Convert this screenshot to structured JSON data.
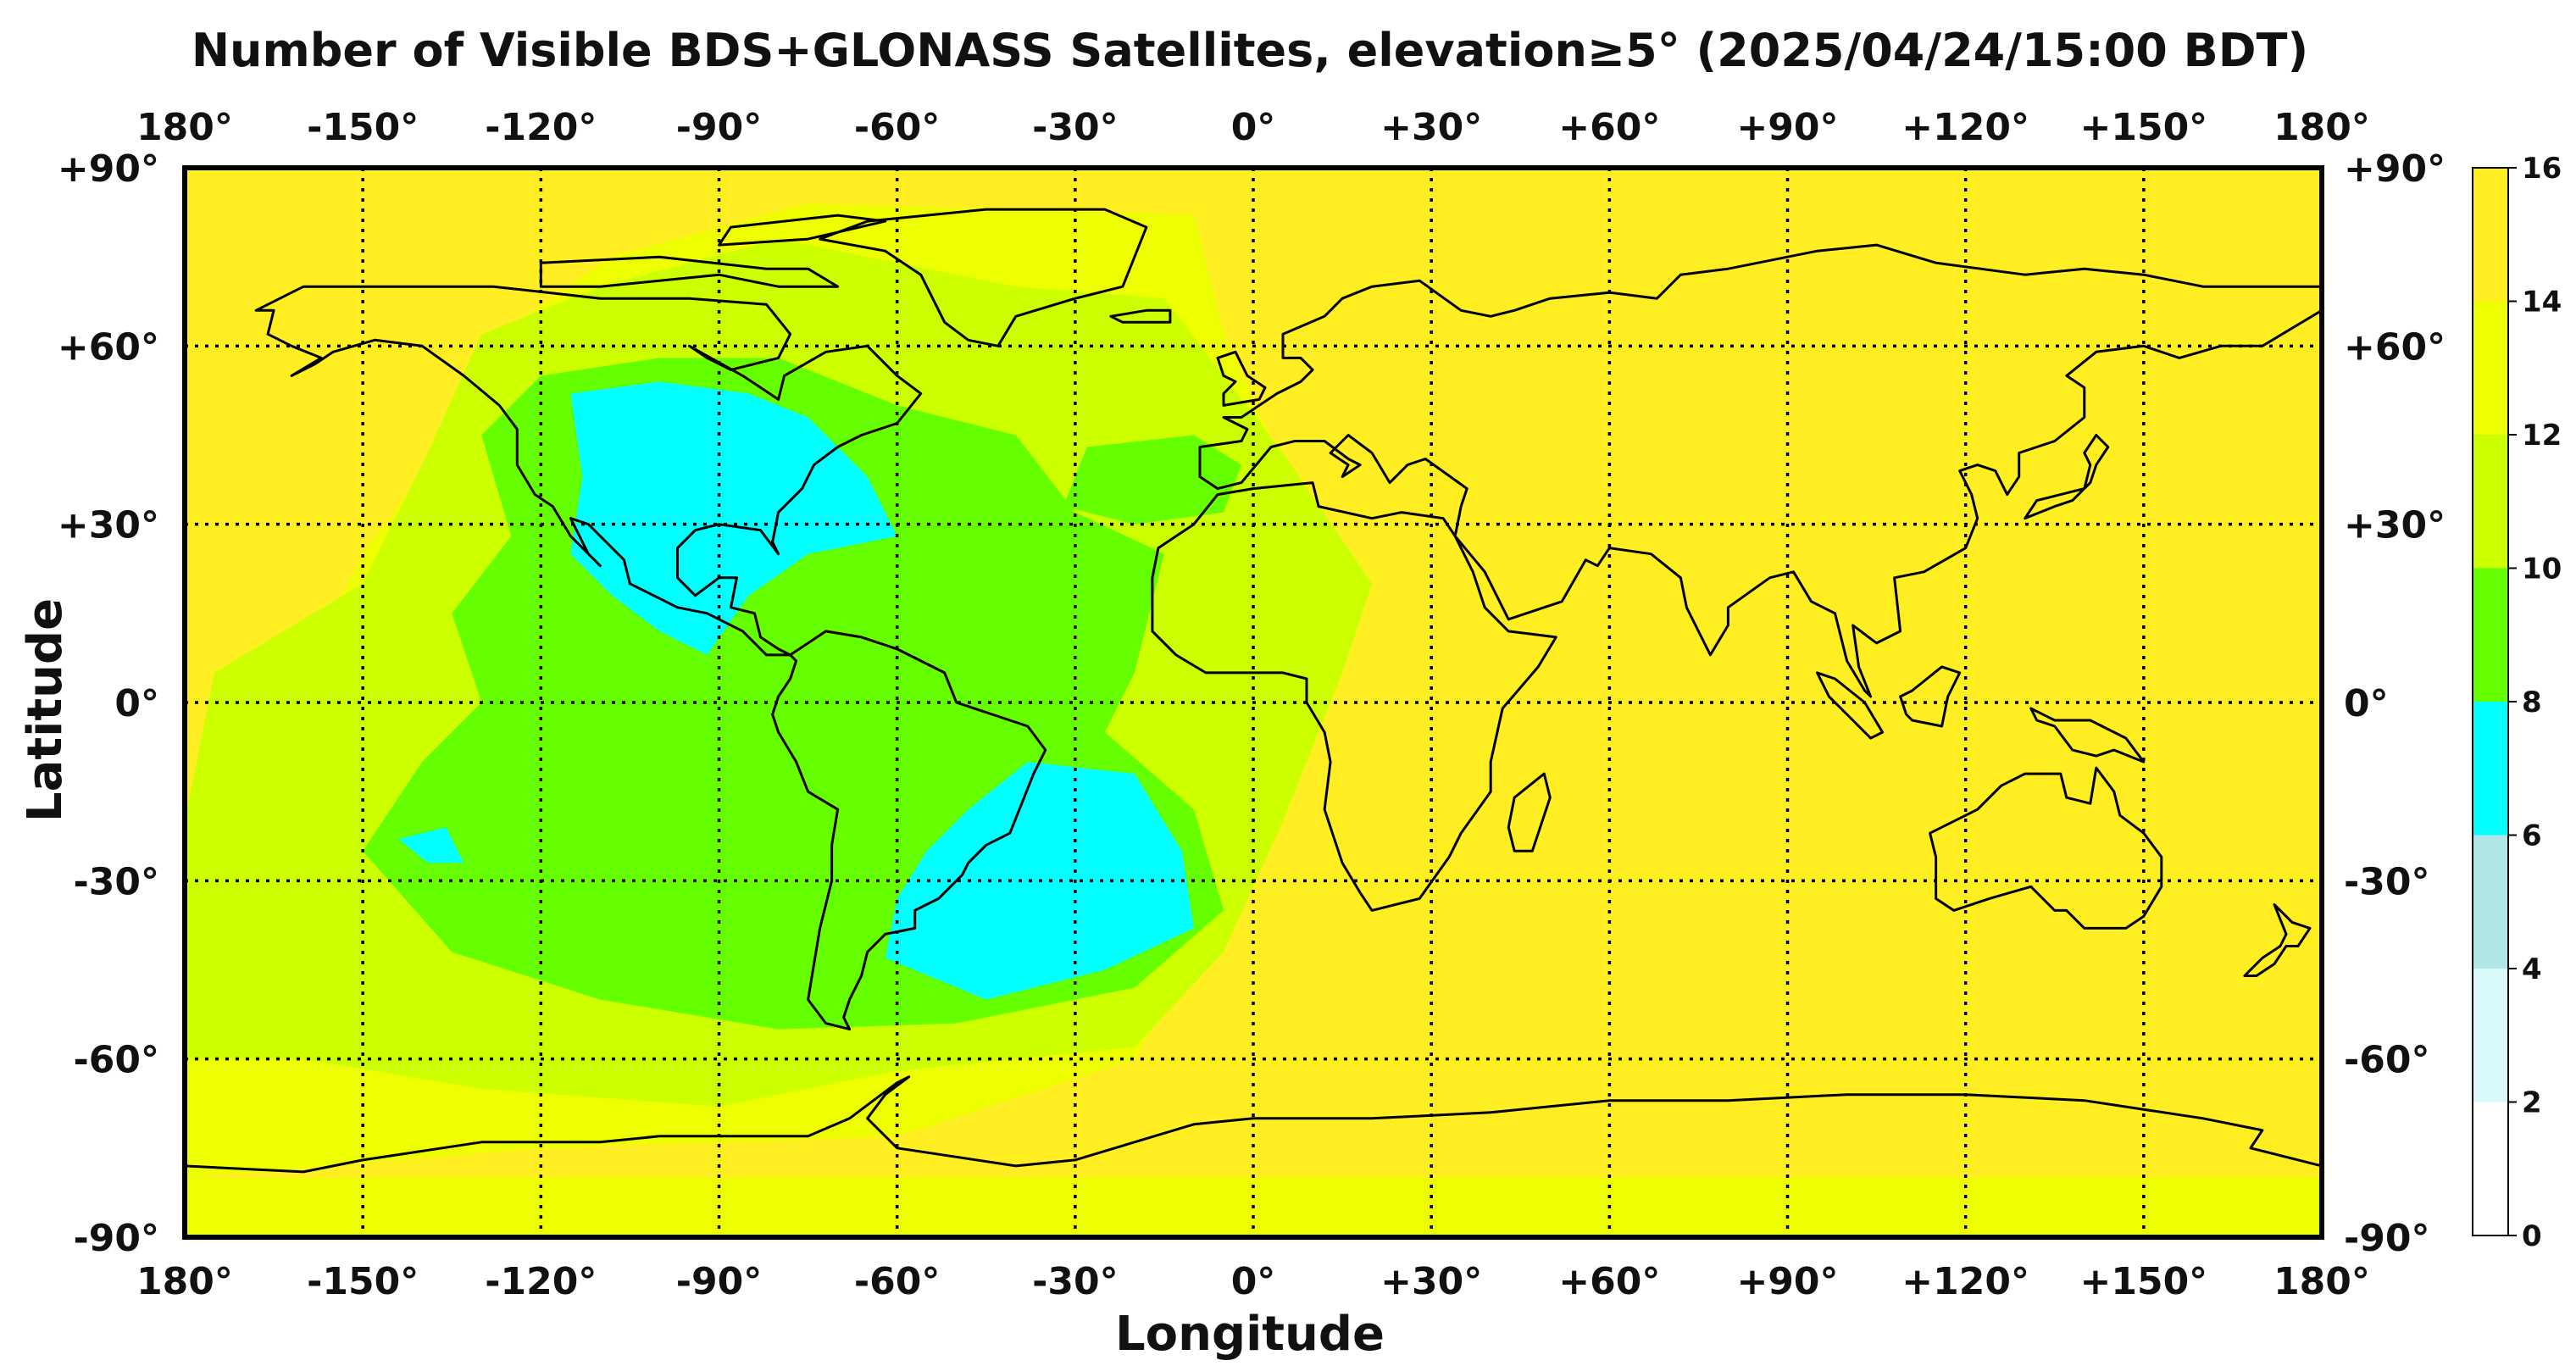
{
  "map": {
    "title": "Number of Visible BDS+GLONASS Satellites, elevation≥5° (2025/04/24/15:00 BDT)",
    "xlabel": "Longitude",
    "ylabel": "Latitude",
    "lon_ticks": [
      "180°",
      "-150°",
      "-120°",
      "-90°",
      "-60°",
      "-30°",
      "0°",
      "+30°",
      "+60°",
      "+90°",
      "+120°",
      "+150°",
      "180°"
    ],
    "lat_ticks": [
      "+90°",
      "+60°",
      "+30°",
      "0°",
      "-30°",
      "-60°",
      "-90°"
    ],
    "lon_range": [
      -180,
      180
    ],
    "lat_range": [
      -90,
      90
    ],
    "gridlines": true
  },
  "colorbar": {
    "ticks": [
      "0",
      "2",
      "4",
      "6",
      "8",
      "10",
      "12",
      "14",
      "16"
    ],
    "colors": [
      "#ffffff",
      "#d8fafa",
      "#b0e6e6",
      "#00ffff",
      "#66ff00",
      "#ccff00",
      "#eeff00",
      "#ffee22"
    ],
    "range": [
      0,
      16
    ]
  },
  "field": {
    "description_colors": {
      "high": "#ffee22",
      "mid_high": "#eeff00",
      "mid": "#ccff00",
      "low": "#66ff00",
      "lowest": "#00ffff"
    }
  }
}
